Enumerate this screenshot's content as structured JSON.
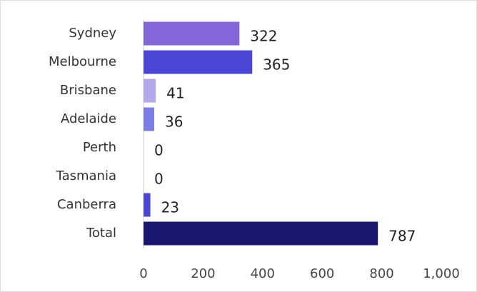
{
  "chart_data": {
    "type": "bar",
    "orientation": "horizontal",
    "categories": [
      "Sydney",
      "Melbourne",
      "Brisbane",
      "Adelaide",
      "Perth",
      "Tasmania",
      "Canberra",
      "Total"
    ],
    "values": [
      322,
      365,
      41,
      36,
      0,
      0,
      23,
      787
    ],
    "colors": [
      "#8466d8",
      "#4a46d6",
      "#b3a8ec",
      "#7b7de6",
      "#7b7de6",
      "#7b7de6",
      "#4a46d6",
      "#1a1670"
    ],
    "xlim": [
      0,
      1000
    ],
    "xticks": [
      0,
      200,
      400,
      600,
      800,
      {
        "value": 1000,
        "label": "1,000"
      }
    ],
    "grid": false
  }
}
